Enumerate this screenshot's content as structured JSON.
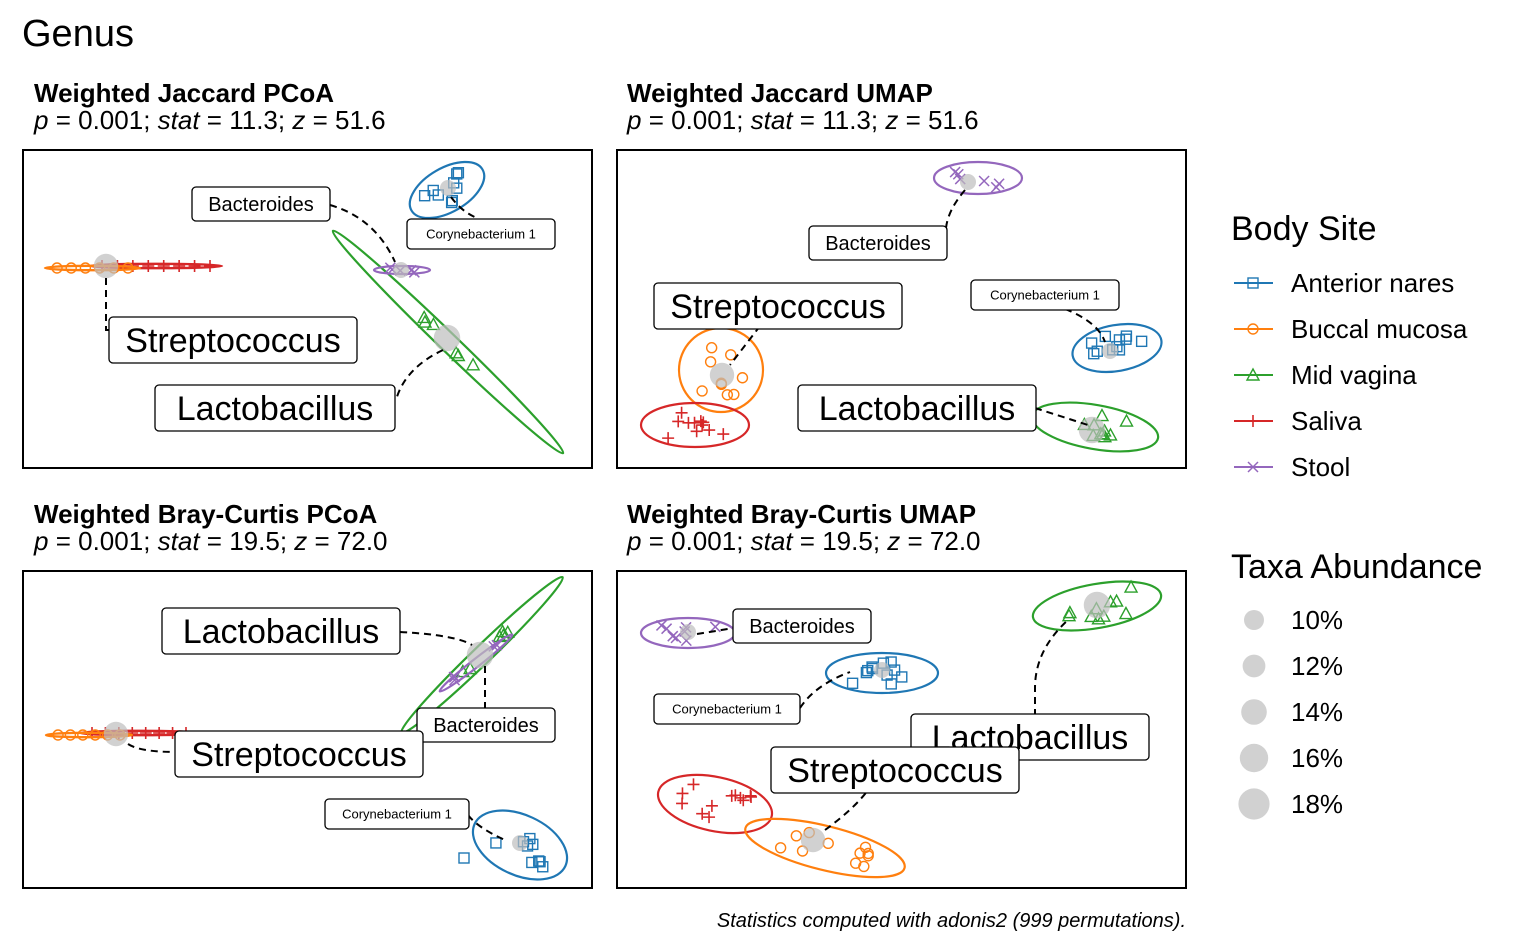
{
  "figure_title": "Genus",
  "caption": "Statistics computed with adonis2 (999 permutations).",
  "colors": {
    "Anterior nares": "#1f77b4",
    "Buccal mucosa": "#ff7f0e",
    "Mid vagina": "#2ca02c",
    "Saliva": "#d62728",
    "Stool": "#9467bd"
  },
  "legend": {
    "body_site_title": "Body Site",
    "body_sites": [
      {
        "label": "Anterior nares",
        "shape": "square"
      },
      {
        "label": "Buccal mucosa",
        "shape": "circle"
      },
      {
        "label": "Mid vagina",
        "shape": "triangle"
      },
      {
        "label": "Saliva",
        "shape": "plus"
      },
      {
        "label": "Stool",
        "shape": "cross"
      }
    ],
    "abundance_title": "Taxa Abundance",
    "abundance": [
      {
        "label": "10%",
        "value": 10
      },
      {
        "label": "12%",
        "value": 12
      },
      {
        "label": "14%",
        "value": 14
      },
      {
        "label": "16%",
        "value": 16
      },
      {
        "label": "18%",
        "value": 18
      }
    ]
  },
  "chart_data": [
    {
      "type": "scatter",
      "title": "Weighted Jaccard PCoA",
      "stats": {
        "p": "0.001",
        "stat": "11.3",
        "z": "51.6"
      },
      "taxa": [
        {
          "name": "Bacteroides",
          "abundance": 10
        },
        {
          "name": "Corynebacterium 1",
          "abundance": 10
        },
        {
          "name": "Streptococcus",
          "abundance": 14
        },
        {
          "name": "Lactobacillus",
          "abundance": 15
        }
      ]
    },
    {
      "type": "scatter",
      "title": "Weighted Jaccard UMAP",
      "stats": {
        "p": "0.001",
        "stat": "11.3",
        "z": "51.6"
      },
      "taxa": [
        {
          "name": "Bacteroides",
          "abundance": 10
        },
        {
          "name": "Corynebacterium 1",
          "abundance": 10
        },
        {
          "name": "Streptococcus",
          "abundance": 14
        },
        {
          "name": "Lactobacillus",
          "abundance": 15
        }
      ]
    },
    {
      "type": "scatter",
      "title": "Weighted Bray-Curtis PCoA",
      "stats": {
        "p": "0.001",
        "stat": "19.5",
        "z": "72.0"
      },
      "taxa": [
        {
          "name": "Lactobacillus",
          "abundance": 15
        },
        {
          "name": "Bacteroides",
          "abundance": 10
        },
        {
          "name": "Streptococcus",
          "abundance": 14
        },
        {
          "name": "Corynebacterium 1",
          "abundance": 10
        }
      ]
    },
    {
      "type": "scatter",
      "title": "Weighted Bray-Curtis UMAP",
      "stats": {
        "p": "0.001",
        "stat": "19.5",
        "z": "72.0"
      },
      "taxa": [
        {
          "name": "Bacteroides",
          "abundance": 10
        },
        {
          "name": "Corynebacterium 1",
          "abundance": 10
        },
        {
          "name": "Lactobacillus",
          "abundance": 15
        },
        {
          "name": "Streptococcus",
          "abundance": 14
        }
      ]
    }
  ]
}
